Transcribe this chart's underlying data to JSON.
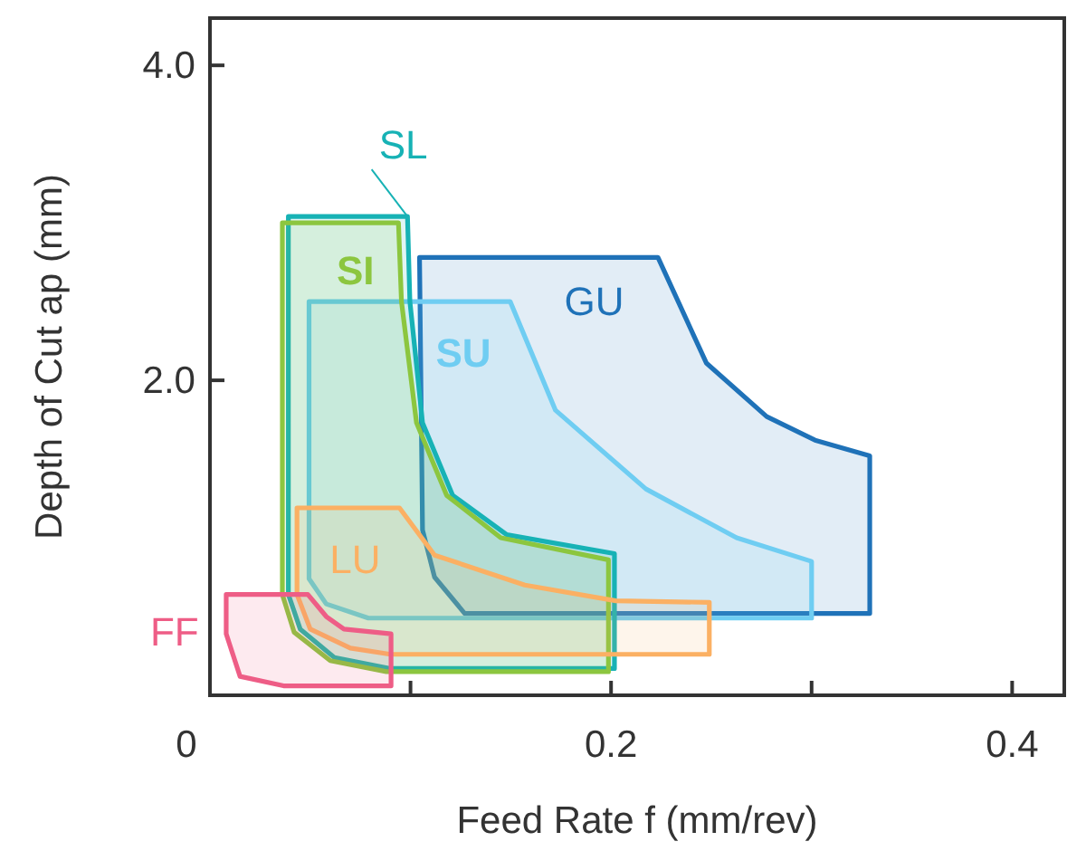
{
  "chart_data": {
    "type": "area",
    "xlabel": "Feed Rate f (mm/rev)",
    "ylabel": "Depth of Cut ap (mm)",
    "xlim": [
      0,
      0.426
    ],
    "ylim": [
      0,
      4.3
    ],
    "xticks": [
      0,
      {
        "value": 0.1,
        "label": null
      },
      0.2,
      {
        "value": 0.3,
        "label": null
      },
      0.4
    ],
    "yticks": [
      "4.0",
      {
        "value": 2,
        "label": "2.0"
      }
    ],
    "grid": false,
    "series": [
      {
        "name": "GU",
        "color": "#1f72b8",
        "x": [
          0.1045,
          0.2234,
          0.2475,
          0.2776,
          0.3017,
          0.329,
          0.329,
          0.127,
          0.112,
          0.106,
          0.1045
        ],
        "values": [
          2.78,
          2.78,
          2.11,
          1.77,
          1.62,
          1.52,
          0.52,
          0.52,
          0.75,
          1.05,
          2.78
        ]
      },
      {
        "name": "SU",
        "color": "#6fcdf2",
        "x": [
          0.0494,
          0.1497,
          0.1723,
          0.2174,
          0.2626,
          0.3,
          0.3,
          0.079,
          0.058,
          0.0494,
          0.0494
        ],
        "values": [
          2.5,
          2.5,
          1.81,
          1.31,
          1.0,
          0.85,
          0.49,
          0.49,
          0.58,
          0.74,
          2.5
        ]
      },
      {
        "name": "SL",
        "color": "#17b2b5",
        "x": [
          0.0391,
          0.0985,
          0.0997,
          0.106,
          0.121,
          0.148,
          0.2017,
          0.2017,
          0.09,
          0.062,
          0.045,
          0.0391,
          0.0391
        ],
        "values": [
          3.04,
          3.04,
          2.5,
          1.73,
          1.27,
          1.02,
          0.9,
          0.17,
          0.17,
          0.24,
          0.42,
          0.64,
          3.04
        ]
      },
      {
        "name": "SI",
        "color": "#8cc63f",
        "x": [
          0.0361,
          0.094,
          0.0955,
          0.103,
          0.118,
          0.145,
          0.1987,
          0.1987,
          0.088,
          0.06,
          0.042,
          0.0361,
          0.0361
        ],
        "values": [
          3.0,
          3.0,
          2.5,
          1.73,
          1.27,
          1.0,
          0.86,
          0.15,
          0.15,
          0.22,
          0.4,
          0.64,
          3.0
        ]
      },
      {
        "name": "LU",
        "color": "#fbb063",
        "x": [
          0.0434,
          0.0945,
          0.112,
          0.157,
          0.2024,
          0.249,
          0.249,
          0.09,
          0.07,
          0.05,
          0.0434,
          0.0434
        ],
        "values": [
          1.19,
          1.19,
          0.89,
          0.7,
          0.6,
          0.59,
          0.26,
          0.26,
          0.3,
          0.42,
          0.64,
          1.19
        ]
      },
      {
        "name": "FF",
        "color": "#ee5d86",
        "x": [
          0.0081,
          0.0488,
          0.058,
          0.0668,
          0.0903,
          0.0903,
          0.0367,
          0.015,
          0.0081,
          0.0081
        ],
        "values": [
          0.64,
          0.64,
          0.5,
          0.42,
          0.39,
          0.06,
          0.06,
          0.12,
          0.39,
          0.64
        ]
      }
    ]
  }
}
